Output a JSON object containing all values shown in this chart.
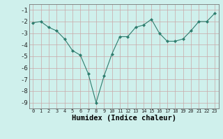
{
  "x": [
    0,
    1,
    2,
    3,
    4,
    5,
    6,
    7,
    8,
    9,
    10,
    11,
    12,
    13,
    14,
    15,
    16,
    17,
    18,
    19,
    20,
    21,
    22,
    23
  ],
  "y": [
    -2.1,
    -2.0,
    -2.5,
    -2.8,
    -3.5,
    -4.5,
    -4.9,
    -6.5,
    -9.0,
    -6.7,
    -4.8,
    -3.3,
    -3.3,
    -2.5,
    -2.3,
    -1.8,
    -3.0,
    -3.7,
    -3.7,
    -3.5,
    -2.8,
    -2.0,
    -2.0,
    -1.3
  ],
  "line_color": "#2e7d6e",
  "marker": "D",
  "marker_size": 2.0,
  "bg_color": "#cff0ec",
  "grid_color": "#c9a8a8",
  "xlabel": "Humidex (Indice chaleur)",
  "ylim": [
    -9.5,
    -0.5
  ],
  "xlim": [
    -0.5,
    23.5
  ],
  "yticks": [
    -9,
    -8,
    -7,
    -6,
    -5,
    -4,
    -3,
    -2,
    -1
  ],
  "xtick_labels": [
    "0",
    "1",
    "2",
    "3",
    "4",
    "5",
    "6",
    "7",
    "8",
    "9",
    "10",
    "11",
    "12",
    "13",
    "14",
    "15",
    "16",
    "17",
    "18",
    "19",
    "20",
    "21",
    "22",
    "23"
  ]
}
